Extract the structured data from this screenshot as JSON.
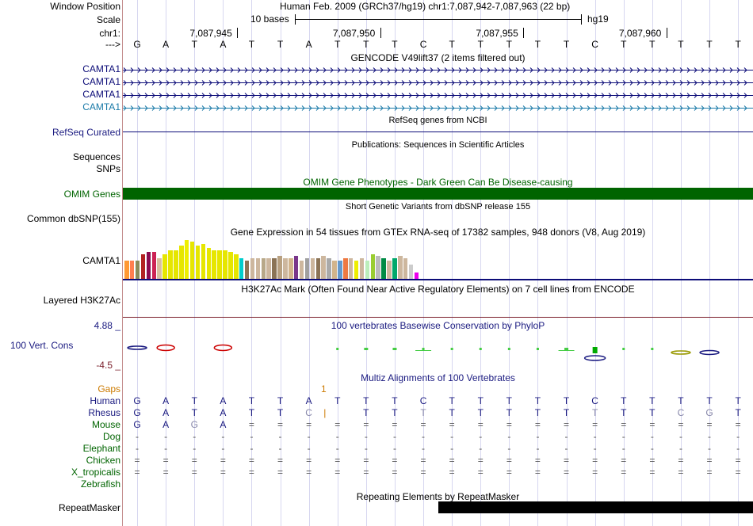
{
  "header": {
    "window_position_label": "Window Position",
    "scale_label": "Scale",
    "chrom_label": "chr1:",
    "arrow_label": "--->",
    "assembly_text": "Human Feb. 2009 (GRCh37/hg19)   chr1:7,087,942-7,087,963 (22 bp)",
    "scale_text": "10 bases",
    "scale_db": "hg19",
    "coords": [
      "7,087,945",
      "7,087,950",
      "7,087,955",
      "7,087,960"
    ]
  },
  "sequence": [
    "G",
    "A",
    "T",
    "A",
    "T",
    "T",
    "A",
    "T",
    "T",
    "T",
    "C",
    "T",
    "T",
    "T",
    "T",
    "T",
    "C",
    "T",
    "T",
    "T",
    "T",
    "T"
  ],
  "tracks": {
    "gencode": {
      "title": "GENCODE V49lift37 (2 items filtered out)",
      "items": [
        "CAMTA1",
        "CAMTA1",
        "CAMTA1",
        "CAMTA1"
      ]
    },
    "refseq": {
      "label": "RefSeq Curated",
      "title": "RefSeq genes from NCBI"
    },
    "publications": {
      "title": "Publications: Sequences in Scientific Articles",
      "label_1": "Sequences",
      "label_2": "SNPs"
    },
    "omim": {
      "title": "OMIM Gene Phenotypes - Dark Green Can Be Disease-causing",
      "label": "OMIM Genes",
      "color": "#006400"
    },
    "dbsnp": {
      "label": "Common dbSNP(155)",
      "title": "Short Genetic Variants from dbSNP release 155"
    },
    "gtex": {
      "title": "Gene Expression in 54 tissues from GTEx RNA-seq of 17382 samples, 948 donors (V8, Aug 2019)",
      "label": "CAMTA1",
      "expression_levels": [
        0.45,
        0.45,
        0.45,
        0.6,
        0.65,
        0.65,
        0.5,
        0.6,
        0.7,
        0.7,
        0.8,
        0.95,
        0.9,
        0.8,
        0.85,
        0.75,
        0.7,
        0.7,
        0.7,
        0.65,
        0.6,
        0.5,
        0.45,
        0.5,
        0.5,
        0.5,
        0.5,
        0.5,
        0.55,
        0.5,
        0.5,
        0.55,
        0.45,
        0.5,
        0.5,
        0.5,
        0.55,
        0.5,
        0.45,
        0.45,
        0.5,
        0.5,
        0.45,
        0.5,
        0.45,
        0.6,
        0.55,
        0.5,
        0.45,
        0.5,
        0.55,
        0.5,
        0.35,
        0.15
      ],
      "colors": [
        "#ff9933",
        "#ff7f50",
        "#8b8b5a",
        "#b22222",
        "#8b0a50",
        "#cc2255",
        "#d8bfa0",
        "#e6e600",
        "#e6e600",
        "#e6e600",
        "#e6e600",
        "#eeee00",
        "#e6e600",
        "#e6e600",
        "#e6e600",
        "#e6e600",
        "#e6e600",
        "#e6e600",
        "#e6e600",
        "#e6e600",
        "#e6e600",
        "#00cdcd",
        "#8b7355",
        "#cdb79e",
        "#cdb79e",
        "#b8a888",
        "#cdb79e",
        "#8b7355",
        "#b8a080",
        "#cdb79e",
        "#d2b48c",
        "#7a378b",
        "#cdb79e",
        "#a0a0a0",
        "#cdb79e",
        "#8b7355",
        "#cdb79e",
        "#aaaaaa",
        "#d2b48c",
        "#6699cc",
        "#ee7942",
        "#cdb79e",
        "#eeee00",
        "#cdb79e",
        "#bbeebb",
        "#9acd32",
        "#bbbbbb",
        "#008b45",
        "#cdb79e",
        "#00a86b",
        "#cdb79e",
        "#cdb79e",
        "#cccccc",
        "#ee00ee"
      ]
    },
    "h3k27ac": {
      "title": "H3K27Ac Mark (Often Found Near Active Regulatory Elements) on 7 cell lines from ENCODE",
      "label": "Layered H3K27Ac"
    },
    "phylop": {
      "title": "100 vertebrates Basewise Conservation by PhyloP",
      "label": "100 Vert. Cons",
      "max": "4.88 _",
      "min": "-4.5 _"
    },
    "multiz": {
      "title": "Multiz Alignments of 100 Vertebrates",
      "gaps_label": "Gaps",
      "gap_mark": "1",
      "species": [
        "Human",
        "Rhesus",
        "Mouse",
        "Dog",
        "Elephant",
        "Chicken",
        "X_tropicalis",
        "Zebrafish"
      ],
      "rows": [
        [
          "G",
          "A",
          "T",
          "A",
          "T",
          "T",
          "A",
          "T",
          "T",
          "T",
          "C",
          "T",
          "T",
          "T",
          "T",
          "T",
          "C",
          "T",
          "T",
          "T",
          "T",
          "T"
        ],
        [
          "G",
          "A",
          "T",
          "A",
          "T",
          "T",
          "C",
          "|",
          "T",
          "T",
          "T",
          "T",
          "T",
          "T",
          "T",
          "T",
          "T",
          "T",
          "T",
          "C",
          "G",
          "T"
        ],
        [
          "G",
          "A",
          "G",
          "A",
          "=",
          "=",
          "=",
          "=",
          "=",
          "=",
          "=",
          "=",
          "=",
          "=",
          "=",
          "=",
          "=",
          "=",
          "=",
          "=",
          "=",
          "="
        ],
        [
          "-",
          "-",
          "-",
          "-",
          "-",
          "-",
          "-",
          "-",
          "-",
          "-",
          "-",
          "-",
          "-",
          "-",
          "-",
          "-",
          "-",
          "-",
          "-",
          "-",
          "-",
          "-"
        ],
        [
          "-",
          "-",
          "-",
          "-",
          "-",
          "-",
          "-",
          "-",
          "-",
          "-",
          "-",
          "-",
          "-",
          "-",
          "-",
          "-",
          "-",
          "-",
          "-",
          "-",
          "-",
          "-"
        ],
        [
          "=",
          "=",
          "=",
          "=",
          "=",
          "=",
          "=",
          "=",
          "=",
          "=",
          "=",
          "=",
          "=",
          "=",
          "=",
          "=",
          "=",
          "=",
          "=",
          "=",
          "=",
          "="
        ],
        [
          "=",
          "=",
          "=",
          "=",
          "=",
          "=",
          "=",
          "=",
          "=",
          "=",
          "=",
          "=",
          "=",
          "=",
          "=",
          "=",
          "=",
          "=",
          "=",
          "=",
          "=",
          "="
        ],
        [
          "",
          "",
          "",
          "",
          "",
          "",
          "",
          "",
          "",
          "",
          "",
          "",
          "",
          "",
          "",
          "",
          "",
          "",
          "",
          "",
          "",
          ""
        ]
      ]
    },
    "repeatmasker": {
      "title": "Repeating Elements by RepeatMasker",
      "label": "RepeatMasker"
    }
  }
}
